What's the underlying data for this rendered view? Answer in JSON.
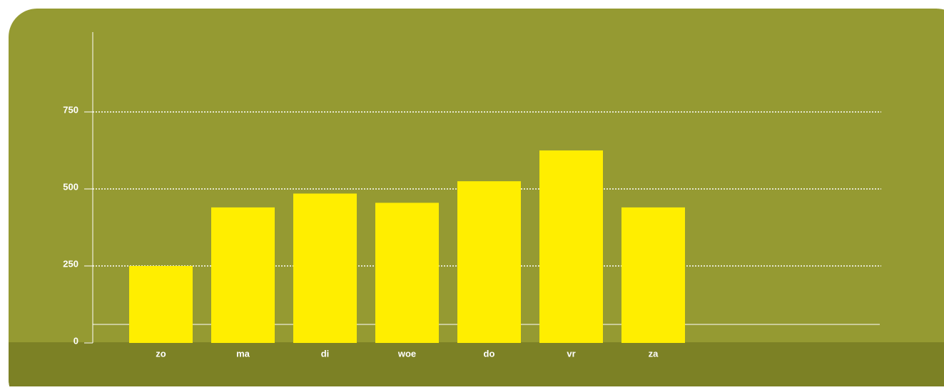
{
  "chart_data": {
    "type": "bar",
    "categories": [
      "zo",
      "ma",
      "di",
      "woe",
      "do",
      "vr",
      "za"
    ],
    "values": [
      250,
      440,
      485,
      455,
      525,
      625,
      440
    ],
    "color": "#ffee00",
    "ylim": [
      0,
      1000
    ],
    "yticks": [
      0,
      250,
      500,
      750
    ],
    "grid": true
  }
}
